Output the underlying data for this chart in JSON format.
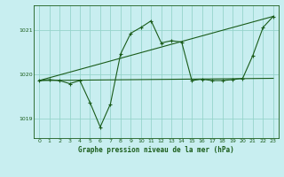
{
  "title": "Graphe pression niveau de la mer (hPa)",
  "background_color": "#c8eef0",
  "grid_color": "#96d4cc",
  "line_color": "#1a5c1a",
  "text_color": "#1a5c1a",
  "xlim": [
    -0.5,
    23.5
  ],
  "ylim": [
    1018.55,
    1021.55
  ],
  "yticks": [
    1019,
    1020,
    1021
  ],
  "xticks": [
    0,
    1,
    2,
    3,
    4,
    5,
    6,
    7,
    8,
    9,
    10,
    11,
    12,
    13,
    14,
    15,
    16,
    17,
    18,
    19,
    20,
    21,
    22,
    23
  ],
  "series1": {
    "x": [
      0,
      1,
      2,
      3,
      4,
      5,
      6,
      7,
      8,
      9,
      10,
      11,
      12,
      13,
      14,
      15,
      16,
      17,
      18,
      19,
      20,
      21,
      22,
      23
    ],
    "y": [
      1019.85,
      1019.87,
      1019.85,
      1019.78,
      1019.85,
      1019.35,
      1018.8,
      1019.32,
      1020.45,
      1020.92,
      1021.05,
      1021.2,
      1020.7,
      1020.75,
      1020.72,
      1019.85,
      1019.88,
      1019.85,
      1019.85,
      1019.87,
      1019.9,
      1020.42,
      1021.05,
      1021.3
    ]
  },
  "series2": {
    "x": [
      0,
      23
    ],
    "y": [
      1019.85,
      1021.3
    ]
  },
  "series3": {
    "x": [
      0,
      23
    ],
    "y": [
      1019.85,
      1019.9
    ]
  }
}
